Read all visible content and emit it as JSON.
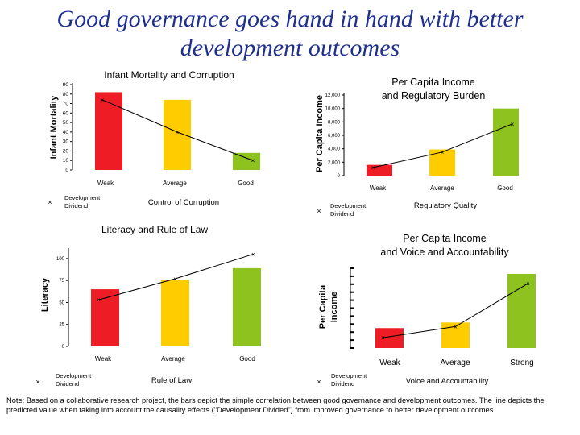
{
  "page": {
    "title_line1": "Good governance goes hand in hand with better",
    "title_line2": "development outcomes",
    "note": "Note: Based on a collaborative research project, the bars depict the simple correlation between good governance and development outcomes. The line depicts the predicted value when taking into account the causality effects (\"Development Divided\") from improved governance to better development outcomes."
  },
  "colors": {
    "weak": "#ee1c25",
    "average": "#ffcc00",
    "good": "#8dc21f",
    "line": "#000000"
  },
  "chart_data": [
    {
      "type": "bar",
      "title": "Infant Mortality and Corruption",
      "xlabel": "Control of Corruption",
      "ylabel": "Infant Mortality",
      "categories": [
        "Weak",
        "Average",
        "Good"
      ],
      "ylim": [
        0,
        90
      ],
      "yticks": [
        0,
        10,
        20,
        30,
        40,
        50,
        60,
        70,
        80,
        90
      ],
      "series": [
        {
          "kind": "bar",
          "values": [
            82,
            74,
            18
          ]
        },
        {
          "kind": "line",
          "name": "Development Dividend",
          "values": [
            74,
            40,
            10
          ]
        }
      ]
    },
    {
      "type": "bar",
      "title": "Per Capita Income and Regulatory Burden",
      "xlabel": "Regulatory Quality",
      "ylabel": "Per Capita Income",
      "categories": [
        "Weak",
        "Average",
        "Good"
      ],
      "ylim": [
        0,
        12000
      ],
      "yticks": [
        0,
        2000,
        4000,
        6000,
        8000,
        10000,
        12000
      ],
      "ytick_labels": [
        "0",
        "2,000",
        "4,000",
        "6,000",
        "8,000",
        "10,000",
        "12,000"
      ],
      "series": [
        {
          "kind": "bar",
          "values": [
            1600,
            3900,
            10000
          ]
        },
        {
          "kind": "line",
          "name": "Development Dividend",
          "values": [
            1200,
            3500,
            7700
          ]
        }
      ]
    },
    {
      "type": "bar",
      "title": "Literacy and Rule of Law",
      "xlabel": "Rule of Law",
      "ylabel": "Literacy",
      "categories": [
        "Weak",
        "Average",
        "Good"
      ],
      "ylim": [
        0,
        110
      ],
      "yticks": [
        0,
        25,
        50,
        75,
        100
      ],
      "series": [
        {
          "kind": "bar",
          "values": [
            65,
            76,
            89
          ]
        },
        {
          "kind": "line",
          "name": "Development Dividend",
          "values": [
            53,
            77,
            105
          ]
        }
      ]
    },
    {
      "type": "bar",
      "title": "Per Capita Income and Voice and Accountability",
      "xlabel": "Voice and Accountability",
      "ylabel": "Per Capita Income",
      "categories": [
        "Weak",
        "Average",
        "Strong"
      ],
      "ylim": [
        0,
        100
      ],
      "series": [
        {
          "kind": "bar",
          "values": [
            25,
            32,
            93
          ]
        },
        {
          "kind": "line",
          "name": "Development Dividend",
          "values": [
            13,
            27,
            81
          ]
        }
      ]
    }
  ]
}
